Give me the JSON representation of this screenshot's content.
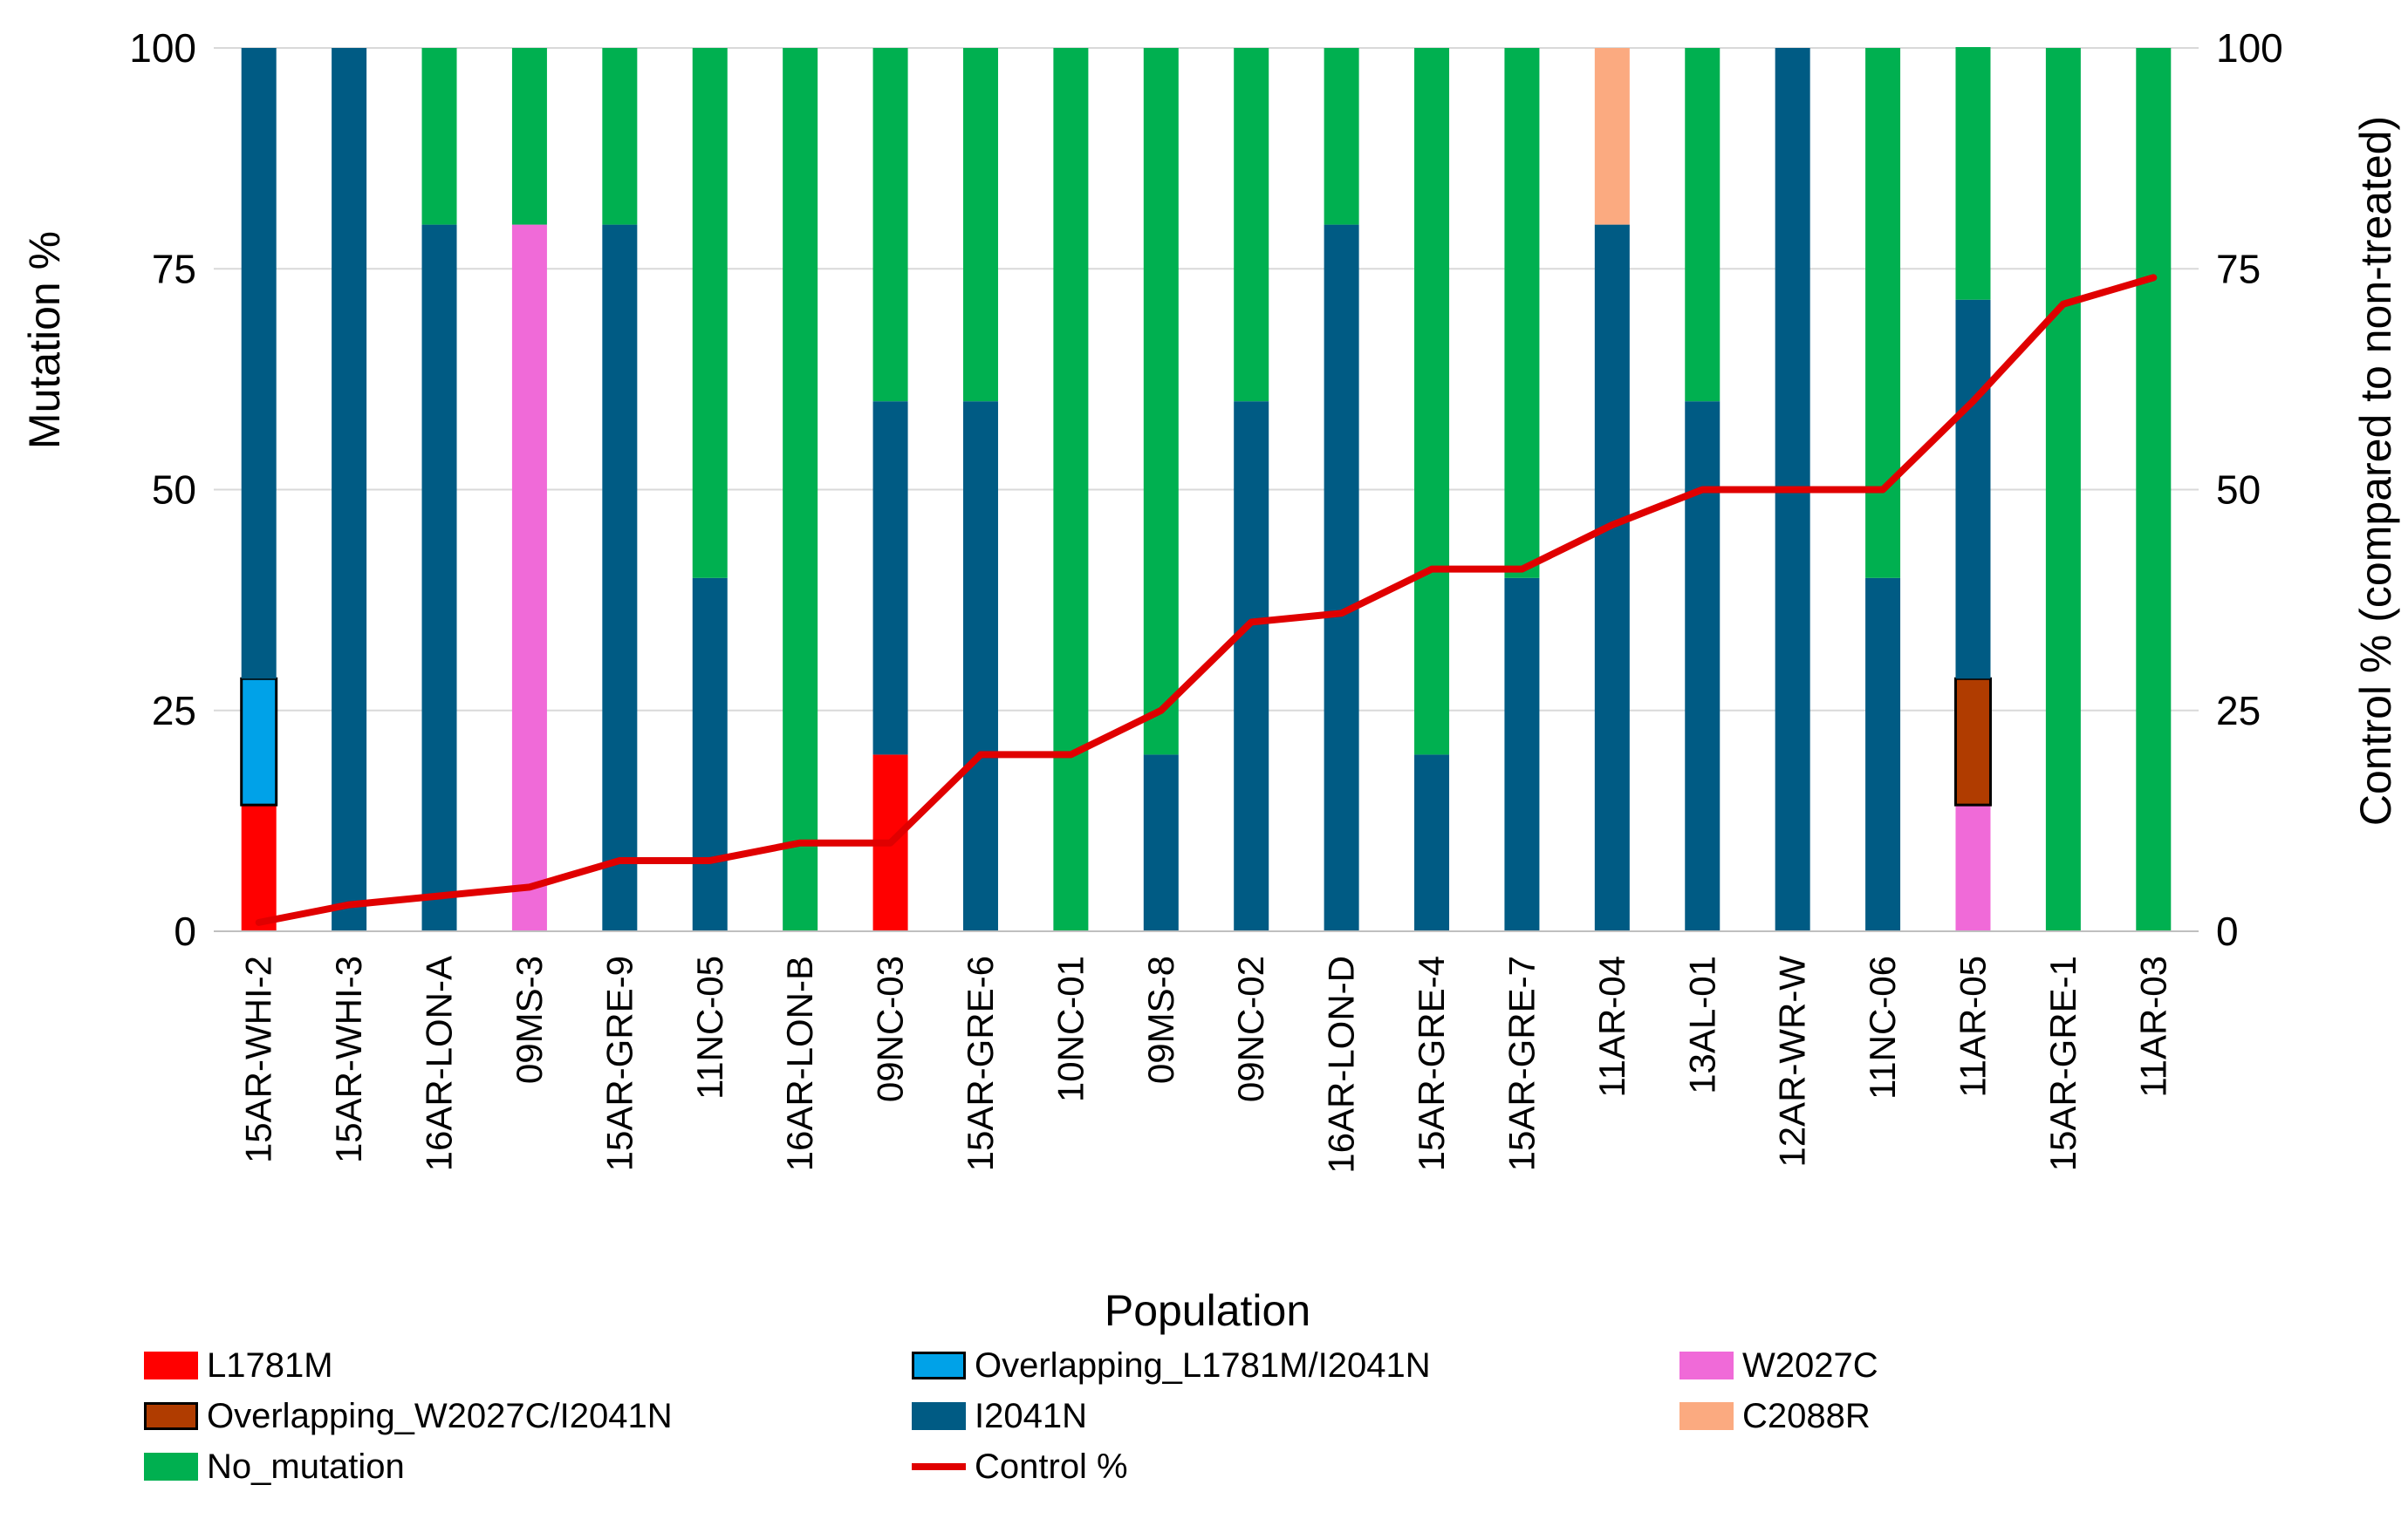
{
  "chart_data": {
    "type": "bar",
    "stacked": true,
    "xlabel": "Population",
    "ylabel": "Mutation %",
    "ylabel_right": "Control % (compared to non-treated)",
    "ylim": [
      0,
      100
    ],
    "ylim_right": [
      0,
      100
    ],
    "yticks": [
      0,
      25,
      50,
      75,
      100
    ],
    "grid": true,
    "categories": [
      "15AR-WHI-2",
      "15AR-WHI-3",
      "16AR-LON-A",
      "09MS-3",
      "15AR-GRE-9",
      "11NC-05",
      "16AR-LON-B",
      "09NC-03",
      "15AR-GRE-6",
      "10NC-01",
      "09MS-8",
      "09NC-02",
      "16AR-LON-D",
      "15AR-GRE-4",
      "15AR-GRE-7",
      "11AR-04",
      "13AL-01",
      "12AR-WR-W",
      "11NC-06",
      "11AR-05",
      "15AR-GRE-1",
      "11AR-03"
    ],
    "series": [
      {
        "name": "L1781M",
        "color": "#ff0000",
        "values": [
          14.3,
          0,
          0,
          0,
          0,
          0,
          0,
          20,
          0,
          0,
          0,
          0,
          0,
          0,
          0,
          0,
          0,
          0,
          0,
          0,
          0,
          0
        ]
      },
      {
        "name": "Overlapping_L1781M/I2041N",
        "color": "#00a2e8",
        "outlined": true,
        "values": [
          14.3,
          0,
          0,
          0,
          0,
          0,
          0,
          0,
          0,
          0,
          0,
          0,
          0,
          0,
          0,
          0,
          0,
          0,
          0,
          0,
          0,
          0
        ]
      },
      {
        "name": "W2027C",
        "color": "#f06ad8",
        "values": [
          0,
          0,
          0,
          80,
          0,
          0,
          0,
          0,
          0,
          0,
          0,
          0,
          0,
          0,
          0,
          0,
          0,
          0,
          0,
          14.3,
          0,
          0
        ]
      },
      {
        "name": "Overlapping_W2027C/I2041N",
        "color": "#b03c00",
        "outlined": true,
        "values": [
          0,
          0,
          0,
          0,
          0,
          0,
          0,
          0,
          0,
          0,
          0,
          0,
          0,
          0,
          0,
          0,
          0,
          0,
          0,
          14.3,
          0,
          0
        ]
      },
      {
        "name": "I2041N",
        "color": "#005b84",
        "values": [
          71.4,
          100,
          80,
          0,
          80,
          40,
          0,
          40,
          60,
          0,
          20,
          60,
          80,
          20,
          40,
          80,
          60,
          100,
          40,
          42.9,
          0,
          0
        ]
      },
      {
        "name": "C2088R",
        "color": "#fbaa80",
        "values": [
          0,
          0,
          0,
          0,
          0,
          0,
          0,
          0,
          0,
          0,
          0,
          0,
          0,
          0,
          0,
          20,
          0,
          0,
          0,
          0,
          0,
          0
        ]
      },
      {
        "name": "No_mutation",
        "color": "#00b050",
        "values": [
          0,
          0,
          20,
          20,
          20,
          60,
          100,
          40,
          40,
          100,
          80,
          40,
          20,
          80,
          60,
          0,
          40,
          0,
          60,
          28.6,
          100,
          100
        ]
      }
    ],
    "line": {
      "name": "Control %",
      "color": "#e00000",
      "axis": "right",
      "values": [
        1,
        3,
        4,
        5,
        8,
        8,
        10,
        10,
        20,
        20,
        25,
        35,
        36,
        41,
        41,
        46,
        50,
        50,
        50,
        60,
        71,
        74
      ]
    },
    "legend_position": "bottom",
    "legend": [
      {
        "label": "L1781M",
        "kind": "bar",
        "color": "#ff0000"
      },
      {
        "label": "Overlapping_L1781M/I2041N",
        "kind": "bar",
        "color": "#00a2e8",
        "outlined": true
      },
      {
        "label": "W2027C",
        "kind": "bar",
        "color": "#f06ad8"
      },
      {
        "label": "Overlapping_W2027C/I2041N",
        "kind": "bar",
        "color": "#b03c00",
        "outlined": true
      },
      {
        "label": "I2041N",
        "kind": "bar",
        "color": "#005b84"
      },
      {
        "label": "C2088R",
        "kind": "bar",
        "color": "#fbaa80"
      },
      {
        "label": "No_mutation",
        "kind": "bar",
        "color": "#00b050"
      },
      {
        "label": "Control %",
        "kind": "line",
        "color": "#e00000"
      }
    ]
  }
}
